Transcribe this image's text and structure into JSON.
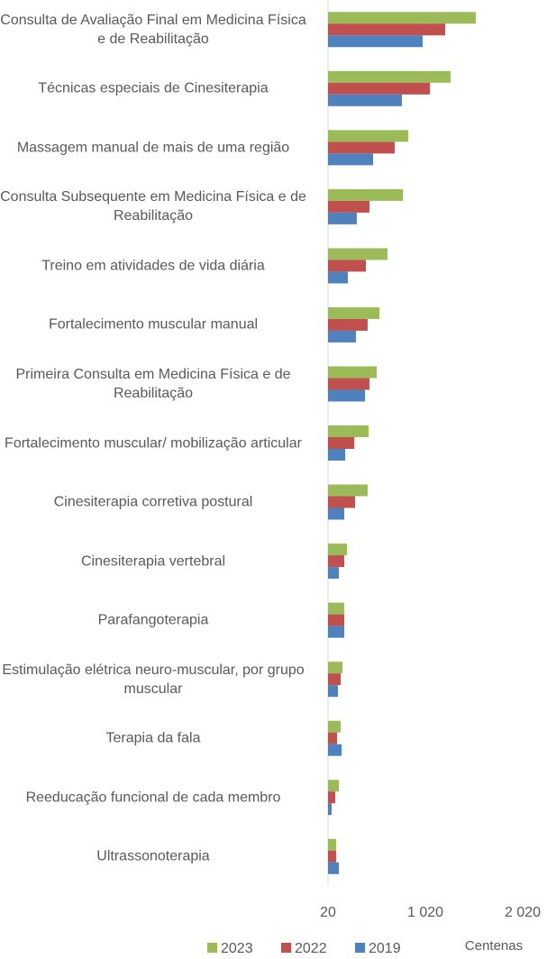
{
  "chart_data": {
    "type": "bar",
    "orientation": "horizontal",
    "categories": [
      "Consulta de Avaliação Final em Medicina Física e de Reabilitação",
      "Técnicas especiais de Cinesiterapia",
      "Massagem manual de mais de uma região",
      "Consulta Subsequente em Medicina Física e de Reabilitação",
      "Treino em atividades de vida diária",
      "Fortalecimento muscular manual",
      "Primeira Consulta em Medicina Física e de Reabilitação",
      "Fortalecimento muscular/ mobilização articular",
      "Cinesiterapia corretiva postural",
      "Cinesiterapia vertebral",
      "Parafangoterapia",
      "Estimulação elétrica neuro-muscular, por grupo muscular",
      "Terapia da fala",
      "Reeducação funcional de cada membro",
      "Ultrassonoterapia"
    ],
    "series": [
      {
        "name": "2023",
        "color": "#9bbb59",
        "values": [
          1538,
          1279,
          844,
          789,
          631,
          548,
          520,
          437,
          427,
          214,
          187,
          168,
          150,
          131,
          103
        ]
      },
      {
        "name": "2022",
        "color": "#c0504d",
        "values": [
          1224,
          1066,
          705,
          446,
          409,
          427,
          446,
          289,
          298,
          187,
          187,
          150,
          113,
          94,
          103
        ]
      },
      {
        "name": "2019",
        "color": "#4f81bd",
        "values": [
          992,
          779,
          483,
          316,
          224,
          307,
          400,
          196,
          187,
          131,
          187,
          122,
          159,
          57,
          131
        ]
      }
    ],
    "xlim": [
      20,
      2020
    ],
    "xticks": [
      20,
      {
        "value": 1020,
        "label": "1 020"
      },
      {
        "value": 2020,
        "label": "2 020"
      }
    ],
    "axis_unit_label": "Centenas",
    "legend": "bottom"
  }
}
